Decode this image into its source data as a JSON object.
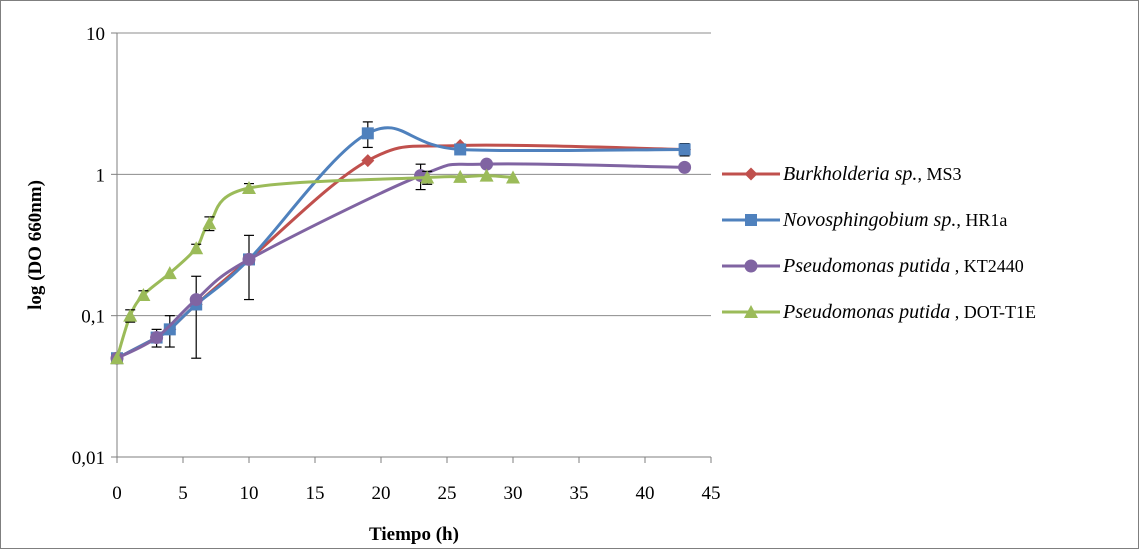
{
  "chart_data": {
    "type": "line",
    "title": "",
    "xlabel": "Tiempo (h)",
    "ylabel": "log (DO 660nm)",
    "xlim": [
      0,
      45
    ],
    "ylim": [
      0.01,
      10
    ],
    "y_scale": "log",
    "x_ticks": [
      "0",
      "5",
      "10",
      "15",
      "20",
      "25",
      "30",
      "35",
      "40",
      "45"
    ],
    "y_ticks": [
      "0,01",
      "0,1",
      "1",
      "10"
    ],
    "grid": "horizontal major",
    "legend_position": "right",
    "series": [
      {
        "name_italic": "Burkholderia sp.",
        "name_suffix": ", MS3",
        "color": "#C0504D",
        "marker": "diamond",
        "x": [
          0,
          3,
          4,
          6,
          10,
          19,
          26,
          43
        ],
        "y": [
          0.05,
          0.07,
          0.08,
          0.12,
          0.25,
          1.25,
          1.6,
          1.5
        ],
        "err": [
          0,
          0,
          0,
          0,
          0,
          0,
          0,
          0
        ]
      },
      {
        "name_italic": "Novosphingobium sp.",
        "name_suffix": ", HR1a",
        "color": "#4F81BD",
        "marker": "square",
        "x": [
          0,
          3,
          4,
          6,
          10,
          19,
          26,
          43
        ],
        "y": [
          0.05,
          0.07,
          0.08,
          0.12,
          0.25,
          1.95,
          1.5,
          1.5
        ],
        "err": [
          0,
          0.01,
          0.02,
          0.07,
          0.12,
          0.4,
          0.1,
          0.15
        ]
      },
      {
        "name_italic": "Pseudomonas putida",
        "name_suffix": " , KT2440",
        "color": "#8064A2",
        "marker": "circle",
        "x": [
          0,
          3,
          6,
          10,
          23,
          28,
          43
        ],
        "y": [
          0.05,
          0.07,
          0.13,
          0.25,
          0.98,
          1.18,
          1.12
        ],
        "err": [
          0,
          0,
          0,
          0,
          0.2,
          0,
          0
        ]
      },
      {
        "name_italic": "Pseudomonas putida",
        "name_suffix": " , DOT-T1E",
        "color": "#9BBB59",
        "marker": "triangle",
        "x": [
          0,
          1,
          2,
          4,
          6,
          7,
          10,
          23.5,
          26,
          28,
          30
        ],
        "y": [
          0.05,
          0.1,
          0.14,
          0.2,
          0.3,
          0.45,
          0.8,
          0.95,
          0.96,
          0.98,
          0.95
        ],
        "err": [
          0,
          0.01,
          0.01,
          0,
          0.02,
          0.05,
          0.06,
          0.1,
          0,
          0,
          0
        ]
      }
    ]
  }
}
